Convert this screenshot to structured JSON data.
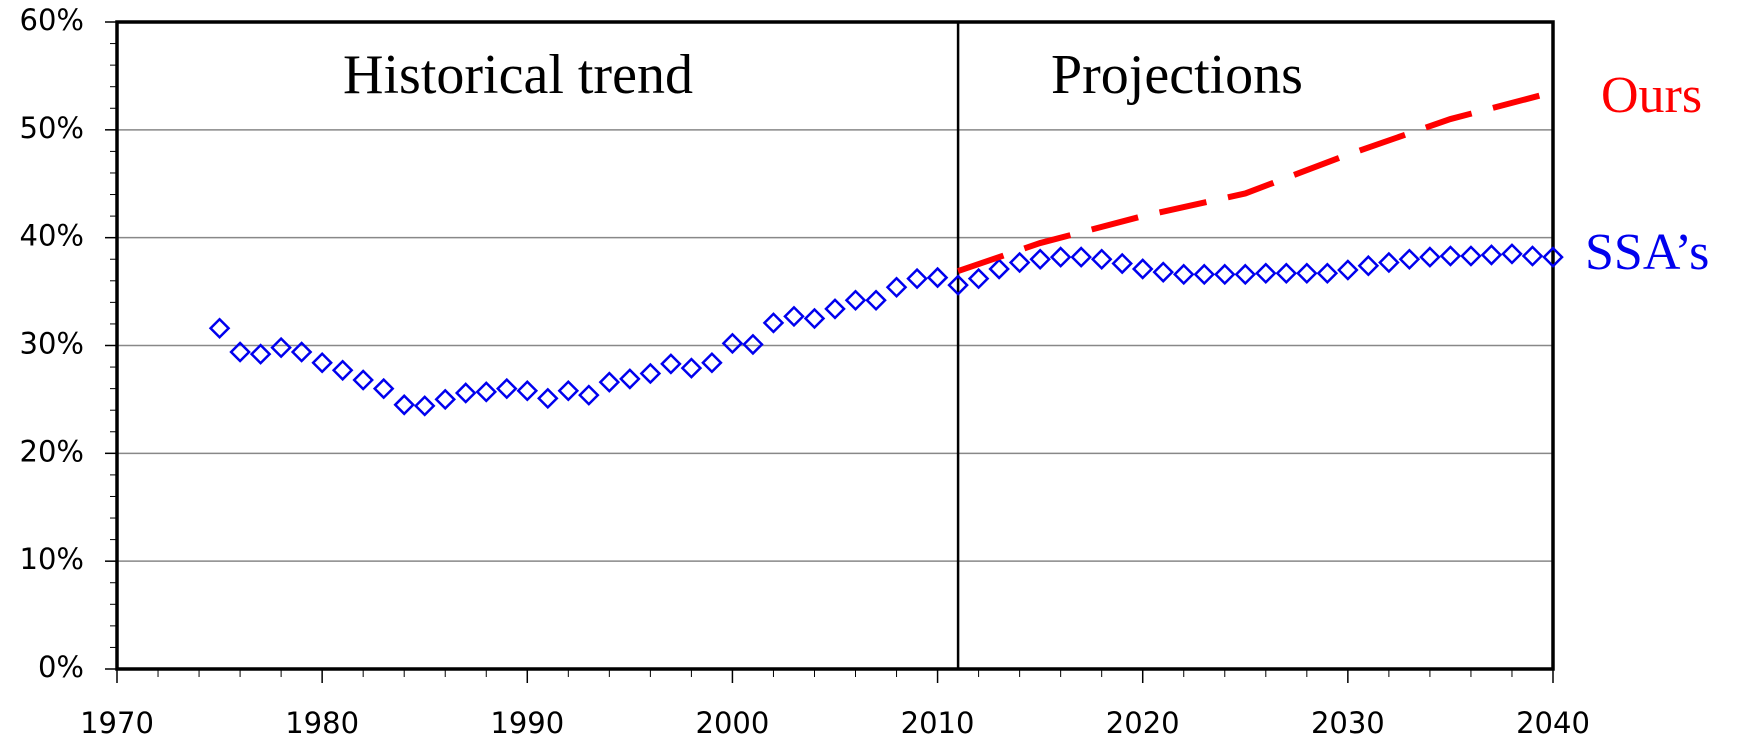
{
  "chart_data": {
    "type": "line",
    "annotations": [
      "Historical trend",
      "Projections"
    ],
    "divider_x": 2011,
    "series": [
      {
        "name": "SSA’s",
        "color": "#0000ee",
        "marker": "diamond",
        "x": [
          1975,
          1976,
          1977,
          1978,
          1979,
          1980,
          1981,
          1982,
          1983,
          1984,
          1985,
          1986,
          1987,
          1988,
          1989,
          1990,
          1991,
          1992,
          1993,
          1994,
          1995,
          1996,
          1997,
          1998,
          1999,
          2000,
          2001,
          2002,
          2003,
          2004,
          2005,
          2006,
          2007,
          2008,
          2009,
          2010,
          2011,
          2012,
          2013,
          2014,
          2015,
          2016,
          2017,
          2018,
          2019,
          2020,
          2021,
          2022,
          2023,
          2024,
          2025,
          2026,
          2027,
          2028,
          2029,
          2030,
          2031,
          2032,
          2033,
          2034,
          2035,
          2036,
          2037,
          2038,
          2039,
          2040
        ],
        "values": [
          31.6,
          29.4,
          29.2,
          29.8,
          29.4,
          28.4,
          27.7,
          26.8,
          26.0,
          24.5,
          24.4,
          25.0,
          25.6,
          25.7,
          26.0,
          25.8,
          25.1,
          25.8,
          25.4,
          26.6,
          26.9,
          27.4,
          28.3,
          27.9,
          28.4,
          30.2,
          30.1,
          32.1,
          32.7,
          32.5,
          33.4,
          34.2,
          34.2,
          35.4,
          36.2,
          36.3,
          35.6,
          36.2,
          37.1,
          37.7,
          38.0,
          38.2,
          38.2,
          38.0,
          37.6,
          37.1,
          36.8,
          36.6,
          36.6,
          36.6,
          36.6,
          36.7,
          36.7,
          36.7,
          36.7,
          37.0,
          37.4,
          37.7,
          38.0,
          38.2,
          38.3,
          38.3,
          38.4,
          38.5,
          38.3,
          38.2
        ]
      },
      {
        "name": "Ours",
        "color": "#ff0000",
        "dashed": true,
        "x": [
          2011,
          2015,
          2020,
          2025,
          2030,
          2035,
          2040
        ],
        "values": [
          36.9,
          39.5,
          42.0,
          44.1,
          47.7,
          51.0,
          53.5
        ]
      }
    ],
    "xlim": [
      1970,
      2040
    ],
    "xticks": [
      1970,
      1980,
      1990,
      2000,
      2010,
      2020,
      2030,
      2040
    ],
    "ylim": [
      0,
      60
    ],
    "yticks": [
      {
        "value": 0,
        "label": "0%"
      },
      {
        "value": 10,
        "label": "10%"
      },
      {
        "value": 20,
        "label": "20%"
      },
      {
        "value": 30,
        "label": "30%"
      },
      {
        "value": 40,
        "label": "40%"
      },
      {
        "value": 50,
        "label": "50%"
      },
      {
        "value": 60,
        "label": "60%"
      }
    ],
    "grid": true
  }
}
